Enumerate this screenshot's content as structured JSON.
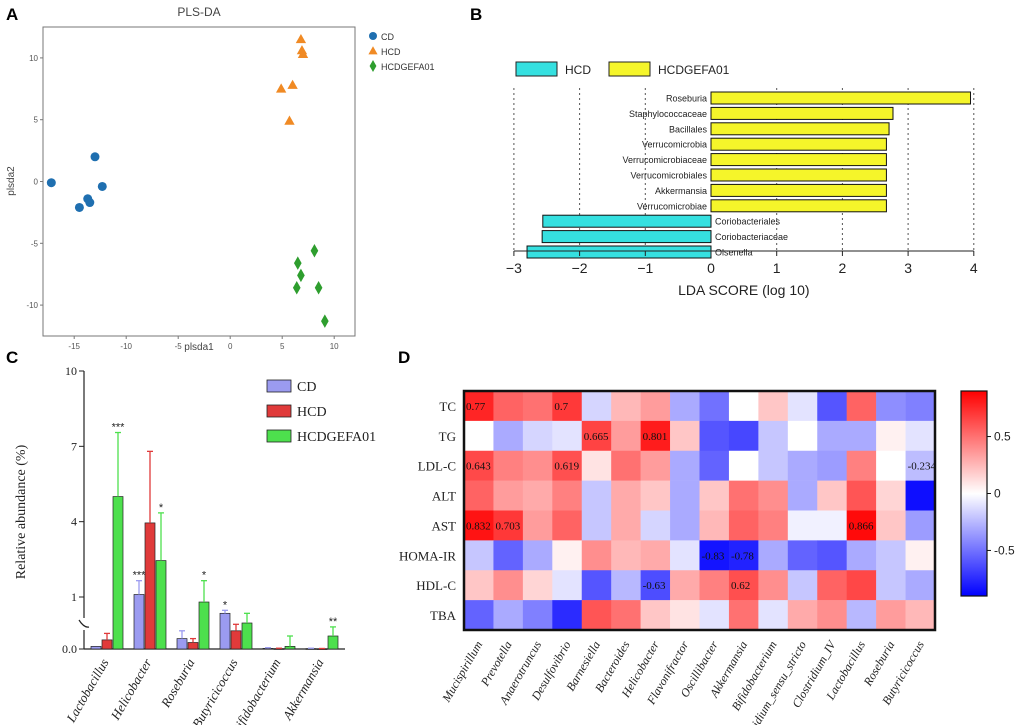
{
  "figure": {
    "panel_labels": [
      "A",
      "B",
      "C",
      "D"
    ]
  },
  "chart_data": [
    {
      "panel": "A",
      "type": "scatter",
      "title": "PLS-DA",
      "xlabel": "plsda1",
      "ylabel": "plsda2",
      "xlim": [
        -18,
        12
      ],
      "ylim": [
        -12.5,
        12.5
      ],
      "xticks": [
        -15,
        -10,
        -5,
        0,
        5,
        10
      ],
      "yticks": [
        -10,
        -5,
        0,
        5,
        10
      ],
      "legend": [
        "CD",
        "HCD",
        "HCDGEFA01"
      ],
      "colors": [
        "#1f6fb0",
        "#f08a24",
        "#2e9e2e"
      ],
      "series": [
        {
          "name": "CD",
          "marker": "circle",
          "x": [
            -17.2,
            -13.0,
            -12.3,
            -13.7,
            -13.5,
            -14.5
          ],
          "y": [
            -0.1,
            2.0,
            -0.4,
            -1.4,
            -1.7,
            -2.1
          ]
        },
        {
          "name": "HCD",
          "marker": "triangle",
          "x": [
            6.8,
            6.9,
            7.0,
            6.0,
            4.9,
            5.7
          ],
          "y": [
            11.5,
            10.6,
            10.3,
            7.8,
            7.5,
            4.9
          ]
        },
        {
          "name": "HCDGEFA01",
          "marker": "diamond",
          "x": [
            8.1,
            6.5,
            6.8,
            6.4,
            8.5,
            9.1
          ],
          "y": [
            -5.6,
            -6.6,
            -7.6,
            -8.6,
            -8.6,
            -11.3
          ]
        }
      ]
    },
    {
      "panel": "B",
      "type": "bar",
      "orientation": "horizontal",
      "xlabel": "LDA SCORE (log 10)",
      "xlim": [
        -3,
        4
      ],
      "xticks": [
        -3,
        -2,
        -1,
        0,
        1,
        2,
        3,
        4
      ],
      "xtick_labels": [
        "−3",
        "−2",
        "−1",
        "0",
        "1",
        "2",
        "3",
        "4"
      ],
      "legend": [
        "HCD",
        "HCDGEFA01"
      ],
      "colors": [
        "#35e0e0",
        "#f5f52a"
      ],
      "categories": [
        "Roseburia",
        "Staphylococcaceae",
        "Bacillales",
        "Verrucomicrobia",
        "Verrucomicrobiaceae",
        "Verrucomicrobiales",
        "Akkermansia",
        "Verrucomicrobiae",
        "Coriobacteriales",
        "Coriobacteriaceae",
        "Olsenella"
      ],
      "groups": [
        "HCDGEFA01",
        "HCDGEFA01",
        "HCDGEFA01",
        "HCDGEFA01",
        "HCDGEFA01",
        "HCDGEFA01",
        "HCDGEFA01",
        "HCDGEFA01",
        "HCD",
        "HCD",
        "HCD"
      ],
      "values": [
        3.95,
        2.77,
        2.71,
        2.67,
        2.67,
        2.67,
        2.67,
        2.67,
        -2.56,
        -2.57,
        -2.8
      ]
    },
    {
      "panel": "C",
      "type": "bar",
      "ylabel": "Relative abundance (%)",
      "yticks": [
        0.0,
        1,
        4,
        7,
        10
      ],
      "ytick_labels": [
        "0.0",
        "1",
        "4",
        "7",
        "10"
      ],
      "ylim": [
        0,
        10
      ],
      "axis_break": [
        0.2,
        0.5
      ],
      "legend": [
        "CD",
        "HCD",
        "HCDGEFA01"
      ],
      "colors": [
        "#9b9bf0",
        "#e03a3a",
        "#4de04d"
      ],
      "categories": [
        "Lactobacillus",
        "Helicobacter",
        "Roseburia",
        "Butyricicoccus",
        "Bifidobacterium",
        "Akkermansia"
      ],
      "series": [
        {
          "name": "CD",
          "values": [
            0.02,
            1.1,
            0.08,
            0.35,
            0.005,
            0.003
          ],
          "errors": [
            0.0,
            0.55,
            0.06,
            0.12,
            0.005,
            0.003
          ],
          "significance": [
            "",
            "***",
            "",
            "*",
            "",
            ""
          ]
        },
        {
          "name": "HCD",
          "values": [
            0.07,
            3.95,
            0.05,
            0.14,
            0.003,
            0.002
          ],
          "errors": [
            0.05,
            2.85,
            0.03,
            0.05,
            0.003,
            0.002
          ],
          "significance": [
            "",
            "",
            "",
            "",
            "",
            ""
          ]
        },
        {
          "name": "HCDGEFA01",
          "values": [
            5.0,
            2.45,
            0.8,
            0.2,
            0.02,
            0.1
          ],
          "errors": [
            2.55,
            1.9,
            0.85,
            0.15,
            0.08,
            0.07
          ],
          "significance": [
            "***",
            "*",
            "*",
            "",
            "",
            "**"
          ]
        }
      ]
    },
    {
      "panel": "D",
      "type": "heatmap",
      "rows": [
        "TC",
        "TG",
        "LDL-C",
        "ALT",
        "AST",
        "HOMA-IR",
        "HDL-C",
        "TBA"
      ],
      "columns": [
        "Mucispirillum",
        "Prevotella",
        "Anaerotruncus",
        "Desulfovibrio",
        "Barnesiella",
        "Bacteroides",
        "Helicobacter",
        "Flavonifractor",
        "Oscillibacter",
        "Akkermansia",
        "Bifidobacterium",
        "Clostridium_sensu_stricto",
        "Clostridium_IV",
        "Lactobacillus",
        "Roseburia",
        "Butyricicoccus"
      ],
      "colorbar_ticks": [
        0.5,
        0,
        -0.5
      ],
      "colorbar_labels": [
        "0.5",
        "0",
        "-0.5"
      ],
      "vmin": -0.9,
      "vmax": 0.9,
      "values": [
        [
          0.77,
          0.55,
          0.5,
          0.7,
          -0.15,
          0.25,
          0.35,
          -0.3,
          -0.5,
          0.0,
          0.2,
          -0.1,
          -0.6,
          0.55,
          -0.4,
          -0.45
        ],
        [
          0.0,
          -0.3,
          -0.15,
          -0.1,
          0.665,
          0.35,
          0.801,
          0.2,
          -0.6,
          -0.65,
          -0.2,
          0.0,
          -0.3,
          -0.3,
          0.05,
          -0.1
        ],
        [
          0.643,
          0.45,
          0.4,
          0.619,
          0.1,
          0.5,
          0.35,
          -0.3,
          -0.55,
          0.0,
          -0.2,
          -0.3,
          -0.35,
          0.45,
          0.0,
          -0.234
        ],
        [
          0.55,
          0.35,
          0.3,
          0.45,
          -0.2,
          0.3,
          0.2,
          -0.3,
          0.2,
          0.5,
          0.4,
          -0.3,
          0.2,
          0.6,
          0.15,
          -0.85
        ],
        [
          0.832,
          0.703,
          0.35,
          0.55,
          -0.2,
          0.3,
          -0.15,
          -0.3,
          0.25,
          0.55,
          0.45,
          -0.05,
          -0.05,
          0.866,
          0.2,
          -0.35
        ],
        [
          -0.2,
          -0.55,
          -0.3,
          0.05,
          0.4,
          0.25,
          0.3,
          -0.1,
          -0.83,
          -0.78,
          -0.3,
          -0.55,
          -0.6,
          -0.3,
          -0.2,
          0.05
        ],
        [
          0.2,
          0.4,
          0.15,
          -0.1,
          -0.6,
          -0.25,
          -0.63,
          0.3,
          0.45,
          0.62,
          0.4,
          -0.2,
          0.55,
          0.65,
          -0.2,
          -0.3
        ],
        [
          -0.55,
          -0.3,
          -0.45,
          -0.75,
          0.6,
          0.5,
          0.2,
          0.1,
          -0.1,
          0.5,
          -0.1,
          0.3,
          0.4,
          -0.25,
          0.35,
          0.25
        ]
      ],
      "cell_labels": [
        [
          "0.77",
          "",
          "",
          "0.7",
          "",
          "",
          "",
          "",
          "",
          "",
          "",
          "",
          "",
          "",
          "",
          ""
        ],
        [
          "",
          "",
          "",
          "",
          "0.665",
          "",
          "0.801",
          "",
          "",
          "",
          "",
          "",
          "",
          "",
          "",
          ""
        ],
        [
          "0.643",
          "",
          "",
          "0.619",
          "",
          "",
          "",
          "",
          "",
          "",
          "",
          "",
          "",
          "",
          "",
          "-0.234"
        ],
        [
          "",
          "",
          "",
          "",
          "",
          "",
          "",
          "",
          "",
          "",
          "",
          "",
          "",
          "",
          "",
          ""
        ],
        [
          "0.832",
          "0.703",
          "",
          "",
          "",
          "",
          "",
          "",
          "",
          "",
          "",
          "",
          "",
          "0.866",
          "",
          ""
        ],
        [
          "",
          "",
          "",
          "",
          "",
          "",
          "",
          "",
          "-0.83",
          "-0.78",
          "",
          "",
          "",
          "",
          "",
          ""
        ],
        [
          "",
          "",
          "",
          "",
          "",
          "",
          "-0.63",
          "",
          "",
          "0.62",
          "",
          "",
          "",
          "",
          "",
          ""
        ],
        [
          "",
          "",
          "",
          "",
          "",
          "",
          "",
          "",
          "",
          "",
          "",
          "",
          "",
          "",
          "",
          ""
        ]
      ]
    }
  ]
}
